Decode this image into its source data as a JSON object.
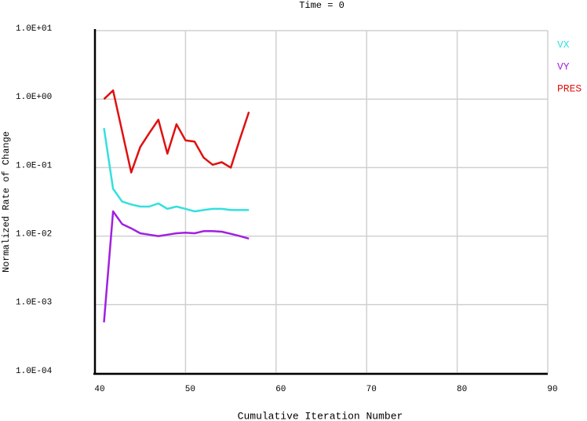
{
  "chart_data": {
    "type": "line",
    "title": "Time = 0",
    "x_label": "Cumulative Iteration Number",
    "y_label": "Normalized Rate of Change",
    "x": [
      41,
      42,
      43,
      44,
      45,
      46,
      47,
      48,
      49,
      50,
      51,
      52,
      53,
      54,
      55,
      56,
      57
    ],
    "series": [
      {
        "name": "VX",
        "color": "#33e0e0",
        "values": [
          0.376,
          0.049,
          0.032,
          0.029,
          0.027,
          0.027,
          0.03,
          0.025,
          0.027,
          0.025,
          0.023,
          0.024,
          0.025,
          0.025,
          0.024,
          0.024,
          0.024
        ]
      },
      {
        "name": "VY",
        "color": "#a020e0",
        "values": [
          0.00055,
          0.023,
          0.015,
          0.013,
          0.011,
          0.0105,
          0.01,
          0.0105,
          0.011,
          0.0112,
          0.011,
          0.0118,
          0.0118,
          0.0116,
          0.0108,
          0.01,
          0.0092
        ]
      },
      {
        "name": "PRES",
        "color": "#e01010",
        "values": [
          1.0,
          1.34,
          0.34,
          0.085,
          0.2,
          0.32,
          0.5,
          0.16,
          0.43,
          0.25,
          0.24,
          0.14,
          0.11,
          0.12,
          0.1,
          0.26,
          0.65
        ]
      }
    ],
    "xlim": [
      40,
      90
    ],
    "xticks": [
      40,
      50,
      60,
      70,
      80,
      90
    ],
    "ylim": [
      0.0001,
      10
    ],
    "log_y": true,
    "grid": true,
    "legend": "right",
    "yticks": [
      {
        "value": 0.0001,
        "label": "1.0E-04"
      },
      {
        "value": 0.001,
        "label": "1.0E-03"
      },
      {
        "value": 0.01,
        "label": "1.0E-02"
      },
      {
        "value": 0.1,
        "label": "1.0E-01"
      },
      {
        "value": 1,
        "label": "1.0E+00"
      },
      {
        "value": 10,
        "label": "1.0E+01"
      }
    ]
  }
}
